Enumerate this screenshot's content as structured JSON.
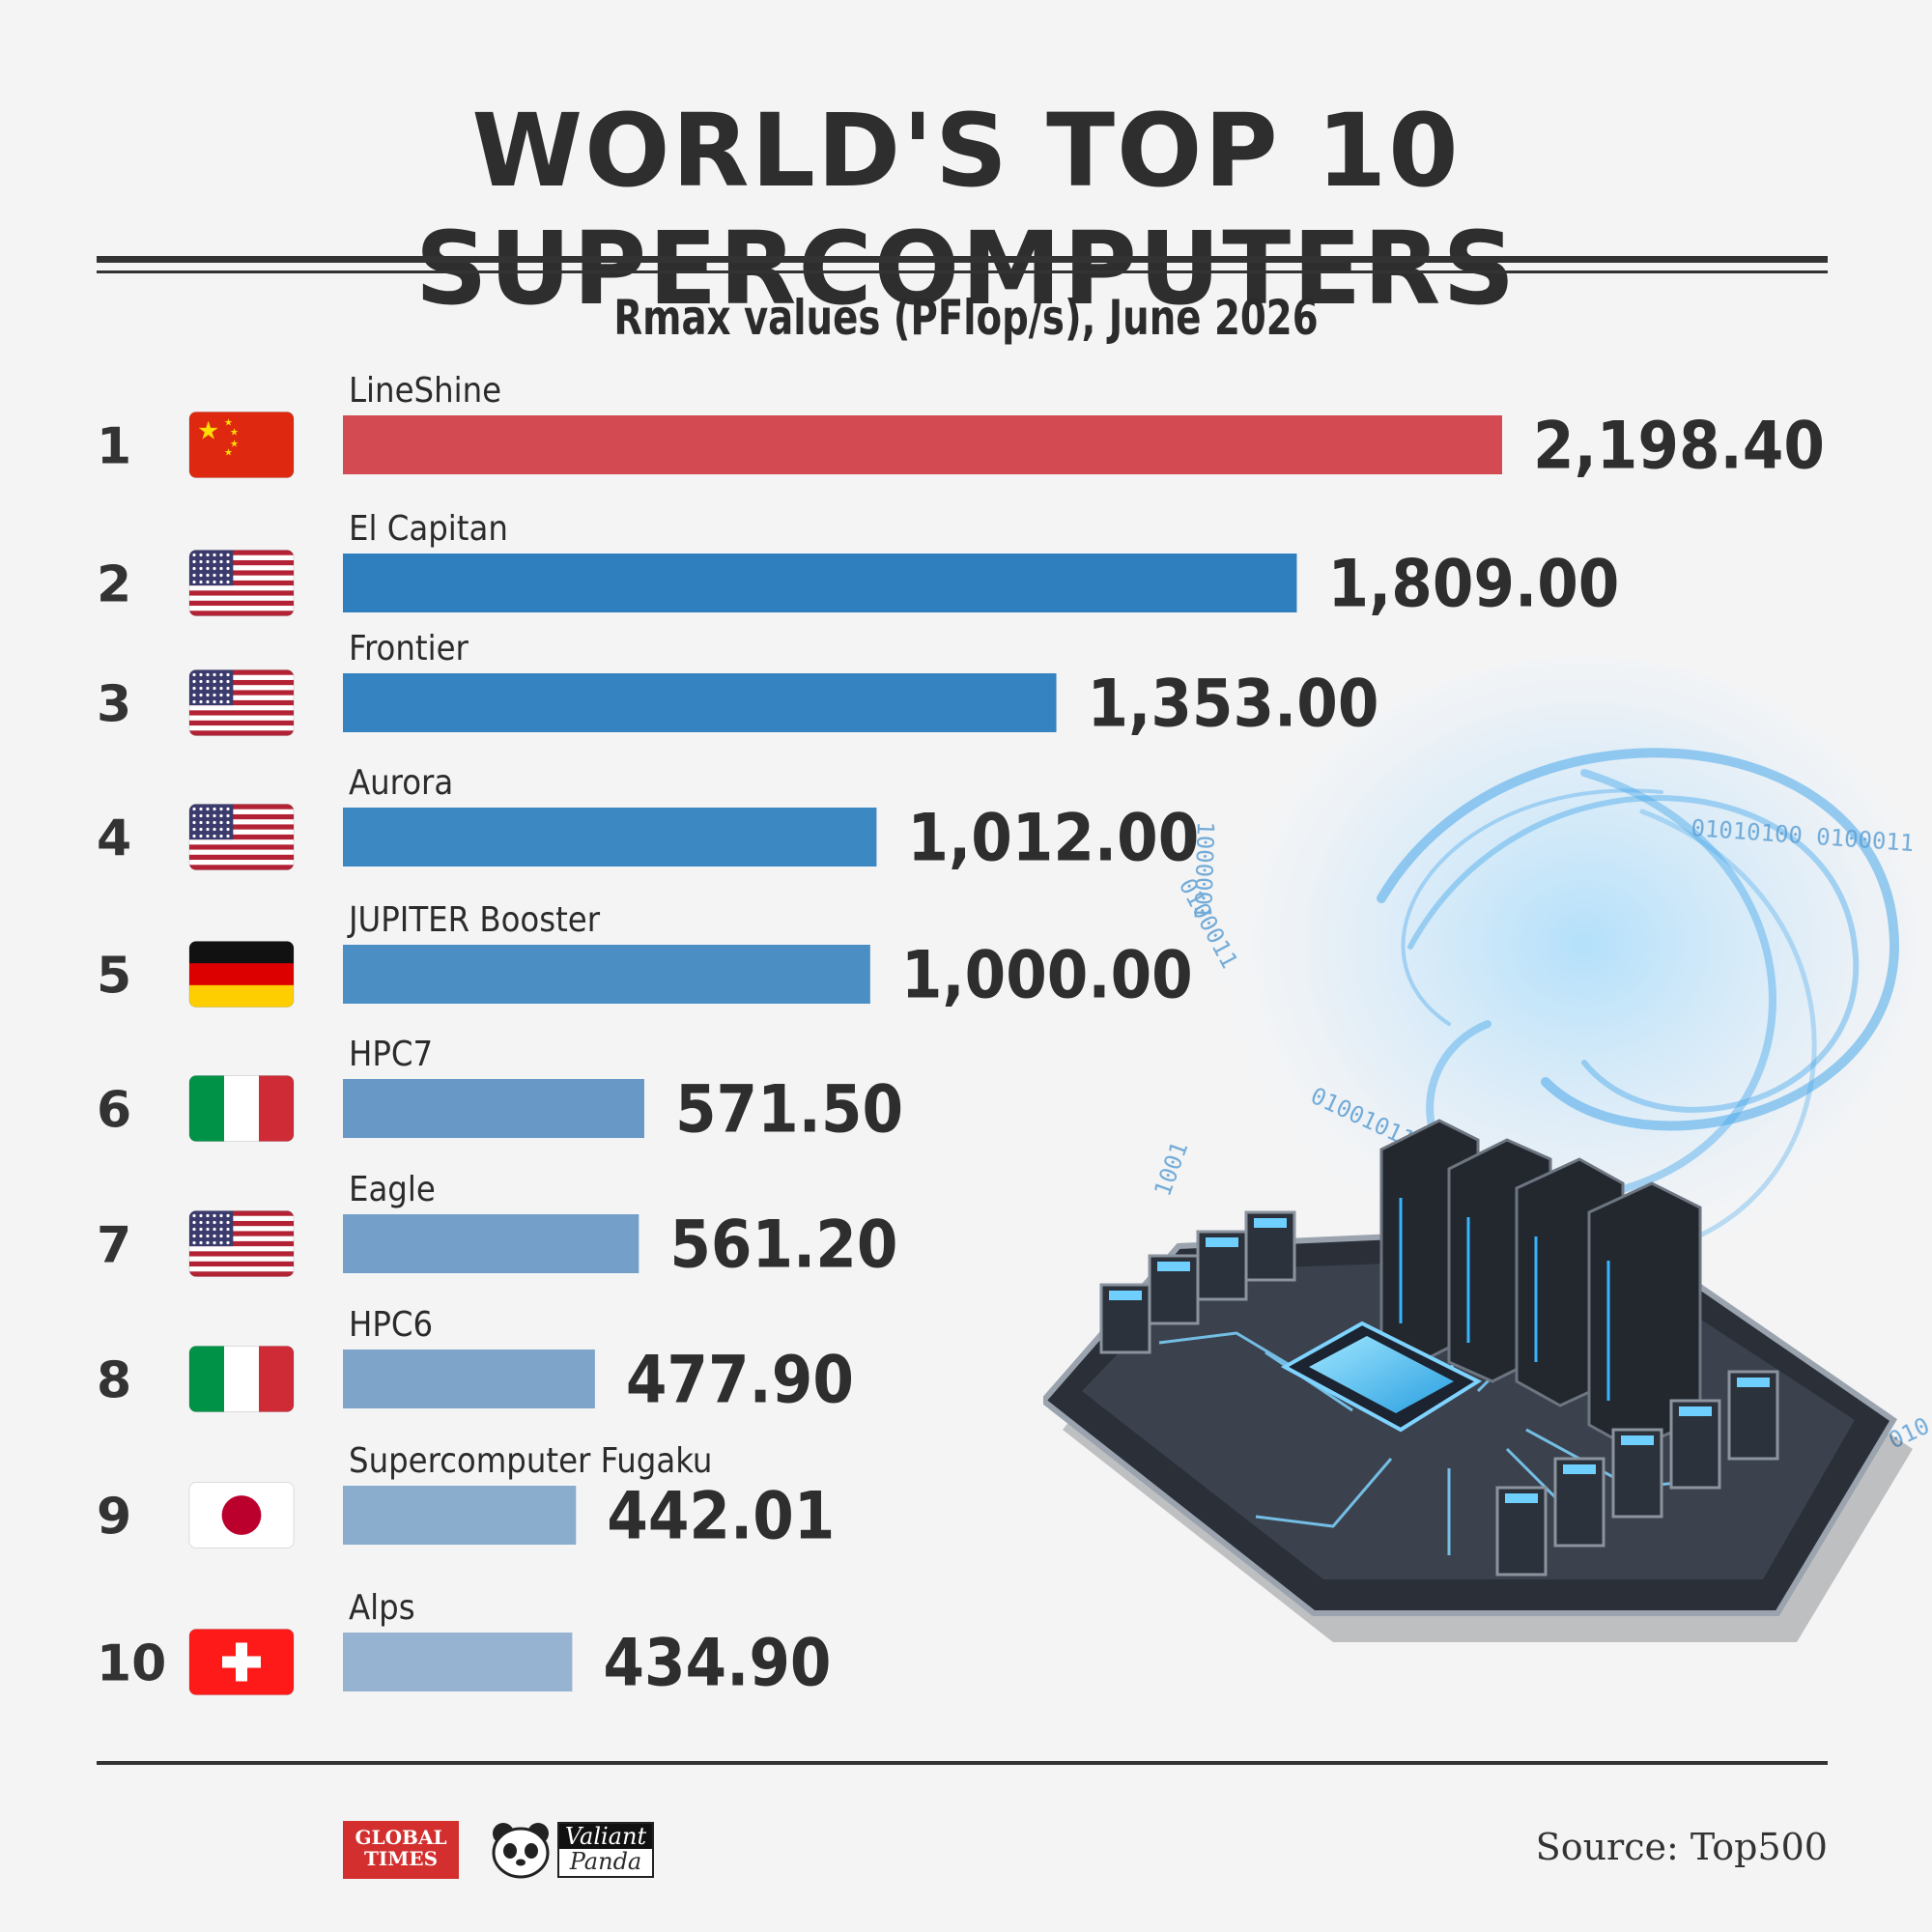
{
  "title": "WORLD'S TOP 10 SUPERCOMPUTERS",
  "subtitle": "Rmax values (PFlop/s),  June 2026",
  "source": "Source: Top500",
  "logos": {
    "global_times": [
      "GLOBAL",
      "TIMES"
    ],
    "valiant_panda": [
      "Valiant",
      "Panda"
    ]
  },
  "art_binary": [
    "0100011",
    "01010100 0100011",
    "01001011",
    "010",
    "1000001",
    "1001"
  ],
  "chart_data": {
    "type": "bar",
    "orientation": "horizontal",
    "title": "WORLD'S TOP 10 SUPERCOMPUTERS",
    "subtitle": "Rmax values (PFlop/s),  June 2026",
    "ranks": [
      "1",
      "2",
      "3",
      "4",
      "5",
      "6",
      "7",
      "8",
      "9",
      "10"
    ],
    "categories": [
      "LineShine",
      "El Capitan",
      "Frontier",
      "Aurora",
      "JUPITER Booster",
      "HPC7",
      "Eagle",
      "HPC6",
      "Supercomputer Fugaku",
      "Alps"
    ],
    "values": [
      2198.4,
      1809.0,
      1353.0,
      1012.0,
      1000.0,
      571.5,
      561.2,
      477.9,
      442.01,
      434.9
    ],
    "value_labels": [
      "2,198.40",
      "1,809.00",
      "1,353.00",
      "1,012.00",
      "1,000.00",
      "571.50",
      "561.20",
      "477.90",
      "442.01",
      "434.90"
    ],
    "flags": [
      "china",
      "usa",
      "usa",
      "usa",
      "germany",
      "italy",
      "usa",
      "italy",
      "japan",
      "switzerland"
    ],
    "bar_colors": [
      "#d44a52",
      "#2f7fbe",
      "#3583c0",
      "#3c88c2",
      "#4a8ec4",
      "#6899c6",
      "#739fc8",
      "#7fa4ca",
      "#8aaccd",
      "#96b3d1"
    ],
    "xlim": [
      0,
      2198.4
    ],
    "grid": false,
    "legend": "none"
  }
}
